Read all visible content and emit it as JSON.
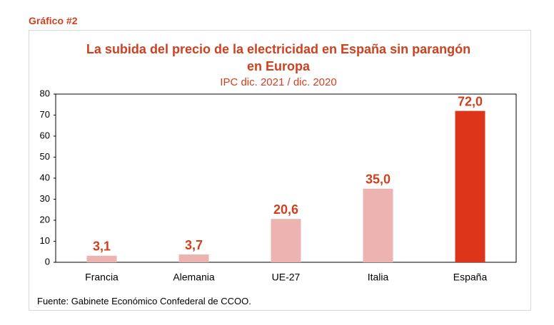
{
  "header": "Gráfico #2",
  "chart_data": {
    "type": "bar",
    "title": "La subida del precio de la electricidad en España sin parangón en Europa",
    "subtitle": "IPC dic. 2021 / dic. 2020",
    "categories": [
      "Francia",
      "Alemania",
      "UE-27",
      "Italia",
      "España"
    ],
    "values": [
      3.1,
      3.7,
      20.6,
      35.0,
      72.0
    ],
    "value_labels": [
      "3,1",
      "3,7",
      "20,6",
      "35,0",
      "72,0"
    ],
    "colors": [
      "#ecb3b0",
      "#ecb3b0",
      "#ecb3b0",
      "#ecb3b0",
      "#dc3519"
    ],
    "ylim": [
      0,
      80
    ],
    "yticks": [
      0,
      10,
      20,
      30,
      40,
      50,
      60,
      70,
      80
    ],
    "grid": false
  },
  "source": "Fuente: Gabinete Económico Confederal de CCOO."
}
